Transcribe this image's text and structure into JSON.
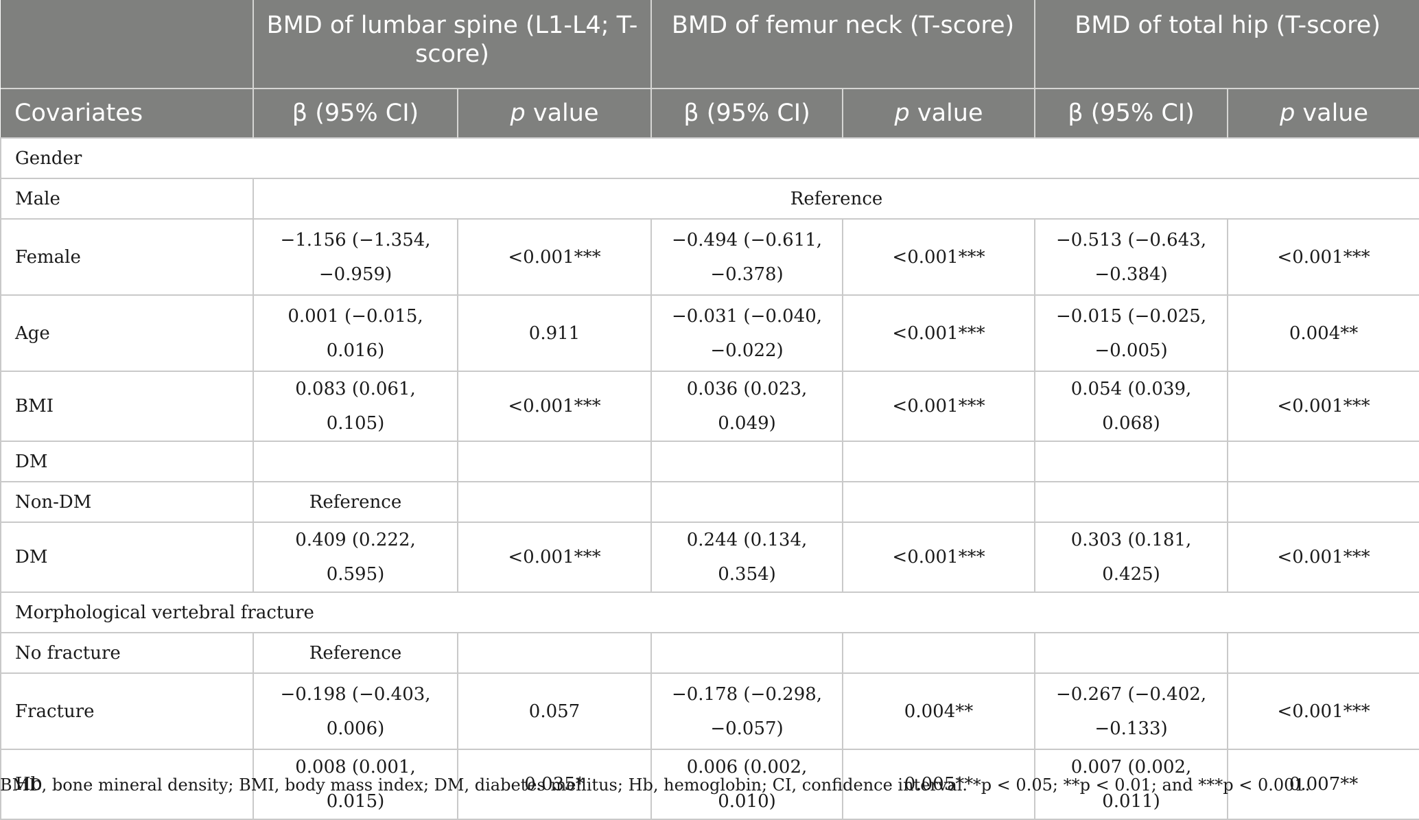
{
  "table": {
    "group_headers": [
      "",
      "BMD of lumbar spine (L1-L4; T-score)",
      "BMD of femur neck (T-score)",
      "BMD of total hip (T-score)"
    ],
    "sub_headers": {
      "covariates": "Covariates",
      "beta": "β (95% CI)",
      "p_italic": "p",
      "p_rest": " value"
    },
    "rows": [
      {
        "kind": "section",
        "label": "Gender"
      },
      {
        "kind": "reference_all",
        "label": "Male",
        "reference": "Reference"
      },
      {
        "kind": "data",
        "tall": true,
        "label": "Female",
        "cells": [
          "−1.156 (−1.354, −0.959)",
          "<0.001***",
          "−0.494 (−0.611, −0.378)",
          "<0.001***",
          "−0.513 (−0.643, −0.384)",
          "<0.001***"
        ]
      },
      {
        "kind": "data",
        "tall": true,
        "label": "Age",
        "cells": [
          "0.001 (−0.015, 0.016)",
          "0.911",
          "−0.031 (−0.040, −0.022)",
          "<0.001***",
          "−0.015 (−0.025, −0.005)",
          "0.004**"
        ]
      },
      {
        "kind": "data",
        "tall": false,
        "label": "BMI",
        "cells": [
          "0.083 (0.061, 0.105)",
          "<0.001***",
          "0.036 (0.023, 0.049)",
          "<0.001***",
          "0.054 (0.039, 0.068)",
          "<0.001***"
        ]
      },
      {
        "kind": "data",
        "tall": false,
        "label": "DM",
        "cells": [
          "",
          "",
          "",
          "",
          "",
          ""
        ]
      },
      {
        "kind": "data",
        "tall": false,
        "label": "Non-DM",
        "cells": [
          "Reference",
          "",
          "",
          "",
          "",
          ""
        ]
      },
      {
        "kind": "data",
        "tall": false,
        "label": "DM",
        "cells": [
          "0.409 (0.222, 0.595)",
          "<0.001***",
          "0.244 (0.134, 0.354)",
          "<0.001***",
          "0.303 (0.181, 0.425)",
          "<0.001***"
        ]
      },
      {
        "kind": "section",
        "label": "Morphological vertebral fracture"
      },
      {
        "kind": "data",
        "tall": false,
        "label": "No fracture",
        "cells": [
          "Reference",
          "",
          "",
          "",
          "",
          ""
        ]
      },
      {
        "kind": "data",
        "tall": true,
        "label": "Fracture",
        "cells": [
          "−0.198 (−0.403, 0.006)",
          "0.057",
          "−0.178 (−0.298, −0.057)",
          "0.004**",
          "−0.267 (−0.402, −0.133)",
          "<0.001***"
        ]
      },
      {
        "kind": "data",
        "tall": false,
        "label": "Hb",
        "cells": [
          "0.008 (0.001, 0.015)",
          "0.035*",
          "0.006 (0.002, 0.010)",
          "0.005**",
          "0.007 (0.002, 0.011)",
          "0.007**"
        ]
      }
    ]
  },
  "footnote": "BMD, bone mineral density; BMI, body mass index; DM, diabetes mellitus; Hb, hemoglobin; CI, confidence interval. *p < 0.05; **p < 0.01; and ***p < 0.001."
}
